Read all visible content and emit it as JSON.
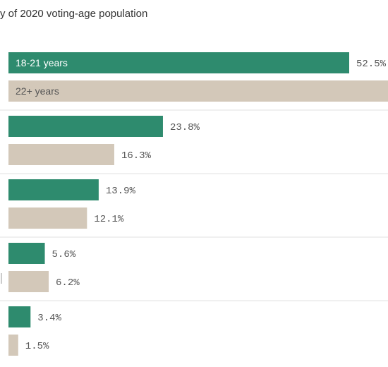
{
  "chart_data": {
    "type": "bar",
    "orientation": "horizontal",
    "subtitle": "y of 2020 voting-age population",
    "categories": [
      "",
      "",
      "",
      "",
      ""
    ],
    "series": [
      {
        "name": "18-21 years",
        "color": "#2e8b6e",
        "values": [
          52.5,
          23.8,
          13.9,
          5.6,
          3.4
        ],
        "labels": [
          "52.5%",
          "23.8%",
          "13.9%",
          "5.6%",
          "3.4%"
        ]
      },
      {
        "name": "22+ years",
        "color": "#d3c8b9",
        "values": [
          null,
          16.3,
          12.1,
          6.2,
          1.5
        ],
        "labels": [
          "",
          "16.3%",
          "12.1%",
          "6.2%",
          "1.5%"
        ]
      }
    ],
    "xlim": [
      0,
      52.5
    ],
    "grid": false,
    "legend": "inside-bars"
  }
}
